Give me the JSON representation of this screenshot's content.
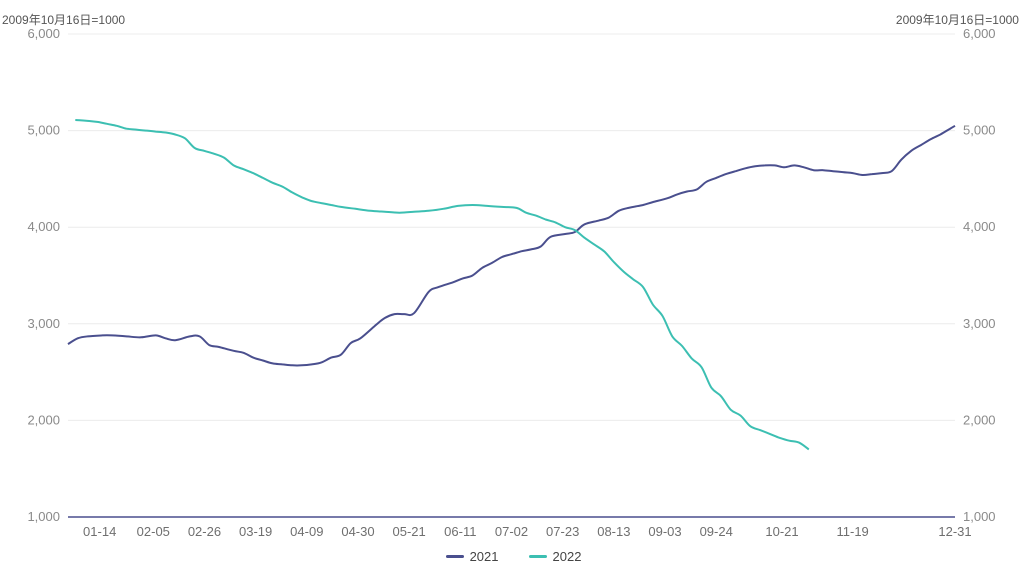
{
  "unit_left": "2009年10月16日=1000",
  "unit_right": "2009年10月16日=1000",
  "colors": {
    "s2021": "#4a4f8e",
    "s2022": "#3cbfb2",
    "grid": "#ececec",
    "axis": "#4a4f8e"
  },
  "chart_data": {
    "type": "line",
    "ylim": [
      1000,
      6000
    ],
    "y_ticks": [
      "1,000",
      "2,000",
      "3,000",
      "4,000",
      "5,000",
      "6,000"
    ],
    "y_tick_values": [
      1000,
      2000,
      3000,
      4000,
      5000,
      6000
    ],
    "x_domain_days": [
      0,
      364
    ],
    "x_ticks": [
      "01-14",
      "02-05",
      "02-26",
      "03-19",
      "04-09",
      "04-30",
      "05-21",
      "06-11",
      "07-02",
      "07-23",
      "08-13",
      "09-03",
      "09-24",
      "10-21",
      "11-19",
      "12-31"
    ],
    "x_tick_days": [
      13,
      35,
      56,
      77,
      98,
      119,
      140,
      161,
      182,
      203,
      224,
      245,
      266,
      293,
      322,
      364
    ],
    "series": [
      {
        "name": "2021",
        "x_days": [
          0,
          4,
          8,
          14,
          18,
          24,
          30,
          36,
          40,
          44,
          50,
          54,
          58,
          62,
          68,
          72,
          76,
          80,
          84,
          88,
          92,
          96,
          100,
          104,
          108,
          112,
          116,
          120,
          126,
          130,
          134,
          138,
          142,
          148,
          152,
          158,
          162,
          166,
          170,
          174,
          178,
          182,
          186,
          190,
          194,
          198,
          204,
          208,
          212,
          218,
          222,
          226,
          230,
          236,
          240,
          246,
          250,
          254,
          258,
          262,
          266,
          270,
          274,
          278,
          282,
          286,
          290,
          294,
          298,
          302,
          306,
          310,
          314,
          318,
          322,
          326,
          330,
          334,
          338,
          342,
          346,
          350,
          354,
          358,
          362,
          364
        ],
        "values": [
          2790,
          2850,
          2870,
          2880,
          2880,
          2870,
          2860,
          2880,
          2850,
          2830,
          2870,
          2870,
          2780,
          2760,
          2720,
          2700,
          2650,
          2620,
          2590,
          2580,
          2570,
          2570,
          2580,
          2600,
          2650,
          2680,
          2800,
          2850,
          2980,
          3060,
          3100,
          3100,
          3110,
          3330,
          3380,
          3430,
          3470,
          3500,
          3580,
          3630,
          3690,
          3720,
          3750,
          3770,
          3800,
          3900,
          3930,
          3950,
          4030,
          4070,
          4100,
          4170,
          4200,
          4230,
          4260,
          4300,
          4340,
          4370,
          4390,
          4470,
          4510,
          4550,
          4580,
          4610,
          4630,
          4640,
          4640,
          4620,
          4640,
          4620,
          4590,
          4590,
          4580,
          4570,
          4560,
          4540,
          4550,
          4560,
          4580,
          4700,
          4790,
          4850,
          4910,
          4960,
          5020,
          5050
        ]
      },
      {
        "name": "2022",
        "x_days": [
          3,
          8,
          12,
          16,
          20,
          24,
          28,
          32,
          36,
          40,
          44,
          48,
          52,
          56,
          60,
          64,
          68,
          72,
          76,
          80,
          84,
          88,
          92,
          96,
          100,
          104,
          108,
          112,
          118,
          124,
          130,
          136,
          142,
          148,
          154,
          160,
          166,
          172,
          178,
          184,
          188,
          192,
          196,
          200,
          204,
          208,
          212,
          216,
          220,
          224,
          228,
          232,
          236,
          240,
          244,
          248,
          252,
          256,
          260,
          264,
          268,
          272,
          276,
          280,
          284,
          288,
          292,
          296,
          300,
          304
        ],
        "values": [
          5110,
          5100,
          5090,
          5070,
          5050,
          5020,
          5010,
          5000,
          4990,
          4980,
          4960,
          4920,
          4820,
          4790,
          4760,
          4720,
          4640,
          4600,
          4560,
          4510,
          4460,
          4420,
          4360,
          4310,
          4270,
          4250,
          4230,
          4210,
          4190,
          4170,
          4160,
          4150,
          4160,
          4170,
          4190,
          4220,
          4230,
          4220,
          4210,
          4200,
          4150,
          4120,
          4080,
          4050,
          4000,
          3970,
          3890,
          3820,
          3750,
          3640,
          3540,
          3460,
          3380,
          3200,
          3080,
          2870,
          2770,
          2640,
          2550,
          2340,
          2250,
          2110,
          2050,
          1940,
          1900,
          1860,
          1820,
          1790,
          1770,
          1700
        ]
      }
    ],
    "legend": [
      "2021",
      "2022"
    ],
    "legend_position": "bottom"
  }
}
